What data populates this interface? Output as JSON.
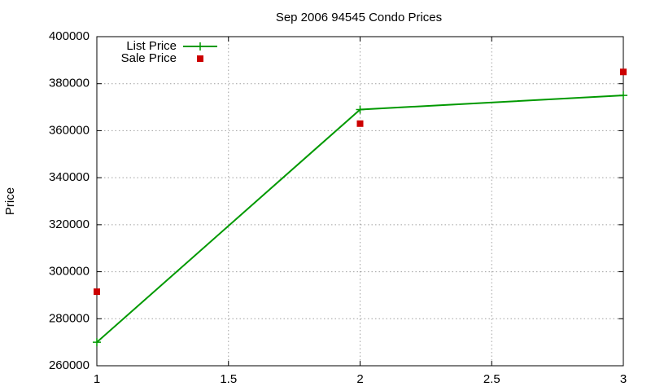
{
  "chart_data": {
    "type": "line",
    "title": "Sep 2006 94545 Condo Prices",
    "xlabel": "",
    "ylabel": "Price",
    "xlim": [
      1,
      3
    ],
    "ylim": [
      260000,
      400000
    ],
    "xticks": [
      "1",
      "1.5",
      "2",
      "2.5",
      "3"
    ],
    "yticks": [
      "260000",
      "280000",
      "300000",
      "320000",
      "340000",
      "360000",
      "380000",
      "400000"
    ],
    "grid": true,
    "legend_position": "top-left",
    "series": [
      {
        "name": "List Price",
        "style": "line-with-plus-markers",
        "color": "#009900",
        "points": [
          [
            1,
            270000
          ],
          [
            2,
            369000
          ],
          [
            3,
            375000
          ]
        ]
      },
      {
        "name": "Sale Price",
        "style": "square-markers",
        "color": "#cc0000",
        "points": [
          [
            1,
            291500
          ],
          [
            2,
            363000
          ],
          [
            3,
            385000
          ]
        ]
      }
    ]
  }
}
